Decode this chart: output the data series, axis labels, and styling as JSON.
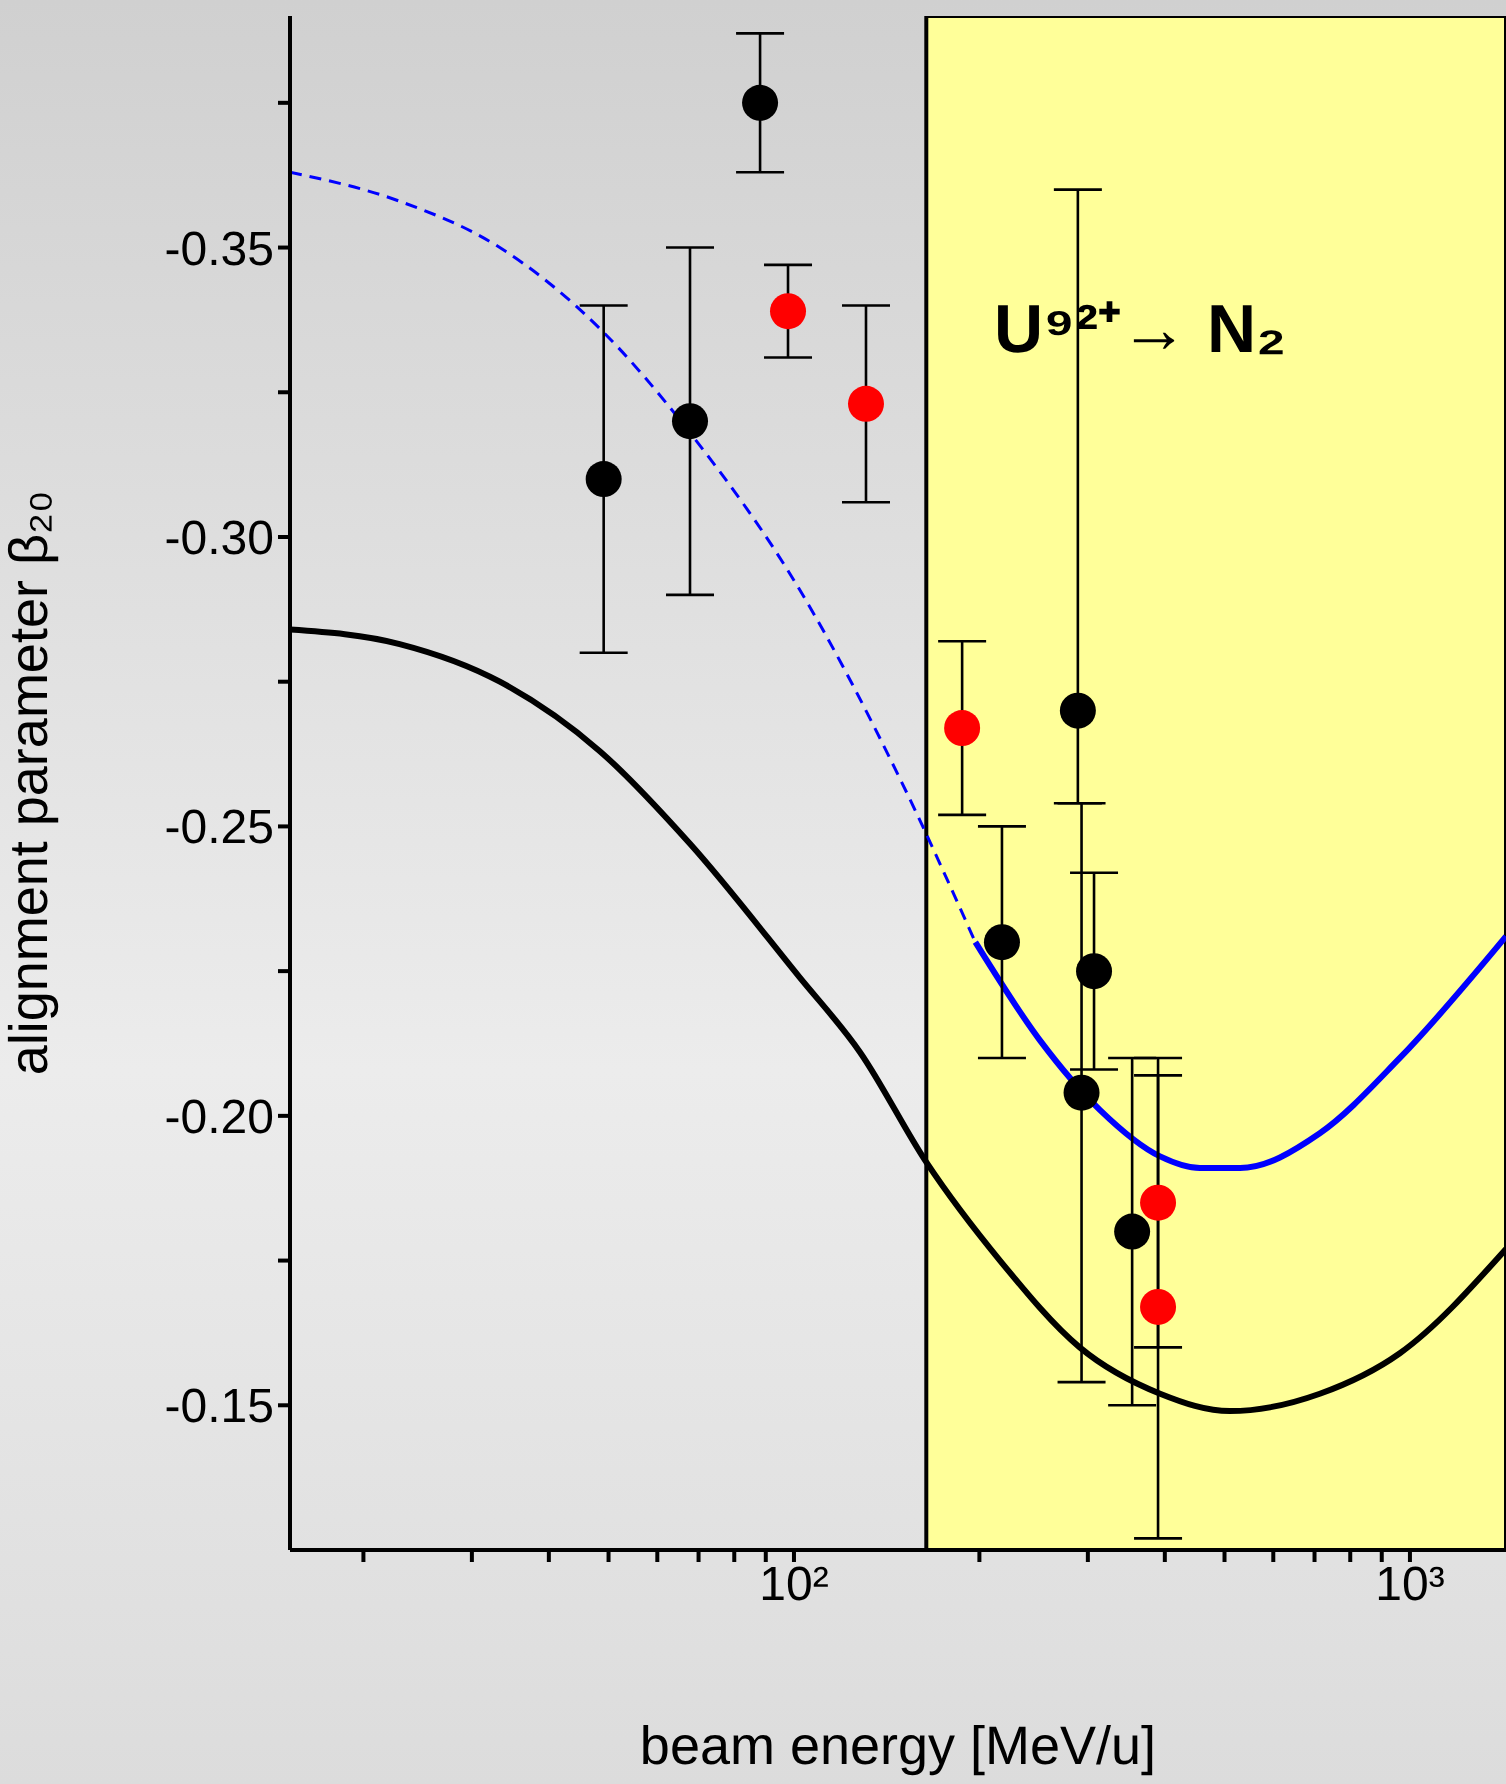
{
  "chart_data": {
    "type": "scatter",
    "xlabel": "beam energy [MeV/u]",
    "ylabel": "alignment parameter   β₂₀",
    "log": "x",
    "grid": false,
    "legend": false,
    "marker": "circle",
    "xlim": [
      15.2,
      1432
    ],
    "ylim": [
      -0.125,
      -0.39
    ],
    "xticks": [
      {
        "value": 20,
        "label": null
      },
      {
        "value": 30,
        "label": null
      },
      {
        "value": 40,
        "label": null
      },
      {
        "value": 50,
        "label": null
      },
      {
        "value": 60,
        "label": null
      },
      {
        "value": 70,
        "label": null
      },
      {
        "value": 80,
        "label": null
      },
      {
        "value": 90,
        "label": null
      },
      {
        "value": 100,
        "label": "10²"
      },
      {
        "value": 200,
        "label": null
      },
      {
        "value": 300,
        "label": null
      },
      {
        "value": 400,
        "label": null
      },
      {
        "value": 500,
        "label": null
      },
      {
        "value": 600,
        "label": null
      },
      {
        "value": 700,
        "label": null
      },
      {
        "value": 800,
        "label": null
      },
      {
        "value": 900,
        "label": null
      },
      {
        "value": 1000,
        "label": "10³"
      }
    ],
    "yticks": [
      {
        "value": -0.375,
        "label": null
      },
      {
        "value": -0.35,
        "label": "-0.35"
      },
      {
        "value": -0.325,
        "label": null
      },
      {
        "value": -0.3,
        "label": "-0.30"
      },
      {
        "value": -0.275,
        "label": null
      },
      {
        "value": -0.25,
        "label": "-0.25"
      },
      {
        "value": -0.225,
        "label": null
      },
      {
        "value": -0.2,
        "label": "-0.20"
      },
      {
        "value": -0.175,
        "label": null
      },
      {
        "value": -0.15,
        "label": "-0.15"
      }
    ],
    "bands": [
      {
        "axis": "x",
        "from": 164,
        "to": 1432,
        "color": "#ffff99"
      }
    ],
    "annotations": [
      "U⁹²⁺→ N₂"
    ],
    "series": [
      {
        "type": "line",
        "color": "#000000",
        "line_style": "solid",
        "marker": "none",
        "x": [
          15.2,
          22.9,
          33.3,
          48.4,
          67.8,
          102,
          128,
          164,
          216,
          291,
          393,
          510,
          714,
          963,
          1432
        ],
        "values": [
          -0.284,
          -0.2815,
          -0.275,
          -0.263,
          -0.247,
          -0.224,
          -0.211,
          -0.192,
          -0.175,
          -0.16,
          -0.152,
          -0.149,
          -0.152,
          -0.159,
          -0.177
        ]
      },
      {
        "type": "line",
        "color": "#0000ff",
        "line_style": "dashed",
        "marker": "none",
        "x": [
          15.2,
          22.9,
          33.3,
          48.4,
          67.8,
          102,
          149,
          197
        ],
        "values": [
          -0.363,
          -0.358,
          -0.35,
          -0.336,
          -0.318,
          -0.291,
          -0.258,
          -0.23
        ]
      },
      {
        "type": "line",
        "color": "#0000ff",
        "line_style": "solid",
        "marker": "none",
        "x": [
          197,
          251,
          314,
          393,
          456,
          530,
          714,
          963,
          1432
        ],
        "values": [
          -0.23,
          -0.213,
          -0.201,
          -0.193,
          -0.191,
          -0.191,
          -0.197,
          -0.21,
          -0.231
        ]
      },
      {
        "color": "#000000",
        "x": [
          49.1,
          67.8,
          88.1,
          217.6,
          289,
          293,
          307,
          354
        ],
        "values": [
          -0.31,
          -0.32,
          -0.375,
          -0.23,
          -0.27,
          -0.204,
          -0.225,
          -0.18
        ],
        "errors": [
          0.03,
          0.03,
          0.012,
          0.02,
          [
            -0.36,
            -0.254
          ],
          0.05,
          0.017,
          0.03
        ]
      },
      {
        "color": "#ff0000",
        "x": [
          97.8,
          130.9,
          187.5,
          390,
          390
        ],
        "values": [
          -0.339,
          -0.323,
          -0.267,
          -0.185,
          -0.167
        ],
        "errors": [
          0.008,
          0.017,
          0.015,
          0.025,
          0.04
        ]
      }
    ]
  }
}
